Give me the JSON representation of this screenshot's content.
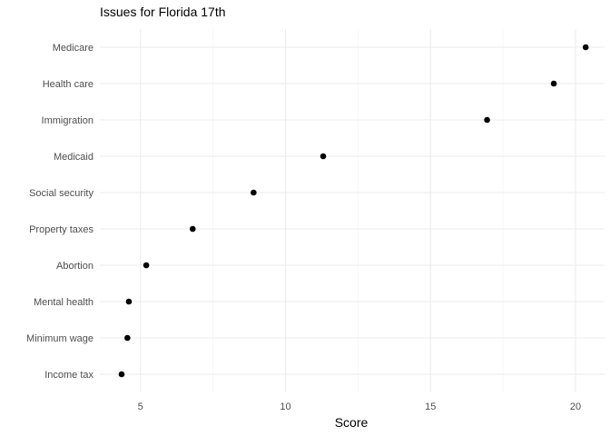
{
  "chart_data": {
    "type": "scatter",
    "title": "Issues for Florida 17th",
    "xlabel": "Score",
    "ylabel": "",
    "xlim": [
      3.6,
      21.0
    ],
    "x_ticks": [
      5,
      10,
      15,
      20
    ],
    "x_minor_ticks": [
      7.5,
      12.5,
      17.5
    ],
    "grid": true,
    "categories": [
      "Medicare",
      "Health care",
      "Immigration",
      "Medicaid",
      "Social security",
      "Property taxes",
      "Abortion",
      "Mental health",
      "Minimum wage",
      "Income tax"
    ],
    "values": [
      20.35,
      19.25,
      16.95,
      11.3,
      8.9,
      6.8,
      5.2,
      4.6,
      4.55,
      4.35
    ]
  }
}
